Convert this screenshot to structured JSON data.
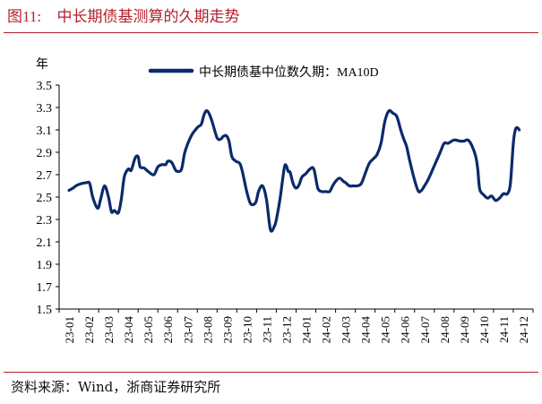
{
  "figure": {
    "label": "图11:",
    "title": "中长期债基测算的久期走势"
  },
  "source": "资料来源：Wind，浙商证券研究所",
  "chart_data": {
    "type": "line",
    "title": "",
    "ylabel": "年",
    "xlabel": "",
    "ylim": [
      1.5,
      3.5
    ],
    "yticks": [
      1.5,
      1.7,
      1.9,
      2.1,
      2.3,
      2.5,
      2.7,
      2.9,
      3.1,
      3.3,
      3.5
    ],
    "ytick_labels": [
      "1.5",
      "1.7",
      "1.9",
      "2.1",
      "2.3",
      "2.5",
      "2.7",
      "2.9",
      "3.1",
      "3.3",
      "3.5"
    ],
    "categories": [
      "23-01",
      "23-02",
      "23-03",
      "23-04",
      "23-05",
      "23-06",
      "23-07",
      "23-08",
      "23-09",
      "23-10",
      "23-11",
      "23-12",
      "24-01",
      "24-02",
      "24-03",
      "24-04",
      "24-05",
      "24-06",
      "24-07",
      "24-08",
      "24-09",
      "24-10",
      "24-11",
      "24-12"
    ],
    "legend": {
      "position": "top-center",
      "label": "中长期债基中位数久期：MA10D"
    },
    "grid": false,
    "series": [
      {
        "name": "中长期债基中位数久期：MA10D",
        "color": "#0b2a6b",
        "x": [
          0.0,
          0.2,
          0.45,
          0.9,
          1.05,
          1.2,
          1.45,
          1.6,
          1.8,
          2.0,
          2.15,
          2.3,
          2.5,
          2.65,
          2.8,
          3.0,
          3.15,
          3.35,
          3.5,
          3.6,
          3.8,
          4.0,
          4.3,
          4.5,
          4.7,
          4.9,
          5.0,
          5.2,
          5.4,
          5.55,
          5.7,
          5.85,
          6.0,
          6.2,
          6.4,
          6.55,
          6.7,
          6.85,
          7.0,
          7.2,
          7.5,
          7.7,
          7.8,
          7.95,
          8.1,
          8.25,
          8.45,
          8.7,
          9.0,
          9.2,
          9.45,
          9.6,
          9.8,
          10.0,
          10.2,
          10.4,
          10.5,
          10.7,
          10.9,
          11.0,
          11.1,
          11.2,
          11.35,
          11.5,
          11.65,
          11.8,
          12.0,
          12.2,
          12.4,
          12.6,
          12.8,
          13.0,
          13.2,
          13.35,
          13.5,
          13.7,
          13.9,
          14.0,
          14.2,
          14.4,
          14.6,
          14.8,
          15.0,
          15.2,
          15.4,
          15.6,
          15.8,
          16.0,
          16.2,
          16.4,
          16.6,
          16.8,
          16.95,
          17.1,
          17.25,
          17.4,
          17.55,
          17.7,
          17.85,
          18.0,
          18.2,
          18.5,
          18.8,
          19.0,
          19.2,
          19.5,
          19.8,
          20.0,
          20.2,
          20.4,
          20.6,
          20.7,
          20.8,
          21.0,
          21.2,
          21.4,
          21.6,
          21.8,
          22.0,
          22.2,
          22.35,
          22.5,
          22.6,
          22.7,
          22.8
        ],
        "values": [
          2.56,
          2.58,
          2.61,
          2.63,
          2.62,
          2.5,
          2.4,
          2.48,
          2.6,
          2.5,
          2.37,
          2.38,
          2.36,
          2.48,
          2.68,
          2.75,
          2.74,
          2.85,
          2.86,
          2.77,
          2.76,
          2.73,
          2.7,
          2.77,
          2.79,
          2.79,
          2.82,
          2.81,
          2.74,
          2.73,
          2.75,
          2.89,
          2.97,
          3.05,
          3.1,
          3.13,
          3.15,
          3.24,
          3.27,
          3.2,
          3.03,
          3.02,
          3.04,
          3.05,
          3.0,
          2.86,
          2.82,
          2.78,
          2.55,
          2.44,
          2.45,
          2.55,
          2.6,
          2.48,
          2.21,
          2.24,
          2.3,
          2.5,
          2.76,
          2.78,
          2.73,
          2.72,
          2.62,
          2.58,
          2.61,
          2.68,
          2.71,
          2.75,
          2.75,
          2.58,
          2.55,
          2.55,
          2.55,
          2.6,
          2.64,
          2.67,
          2.64,
          2.63,
          2.6,
          2.6,
          2.6,
          2.62,
          2.71,
          2.8,
          2.84,
          2.88,
          2.98,
          3.18,
          3.27,
          3.25,
          3.22,
          3.1,
          3.02,
          2.95,
          2.83,
          2.72,
          2.62,
          2.55,
          2.56,
          2.6,
          2.66,
          2.78,
          2.9,
          2.98,
          2.98,
          3.01,
          3.0,
          3.0,
          3.01,
          2.96,
          2.86,
          2.75,
          2.57,
          2.52,
          2.49,
          2.51,
          2.47,
          2.49,
          2.53,
          2.53,
          2.62,
          2.98,
          3.1,
          3.12,
          3.1
        ]
      }
    ]
  }
}
